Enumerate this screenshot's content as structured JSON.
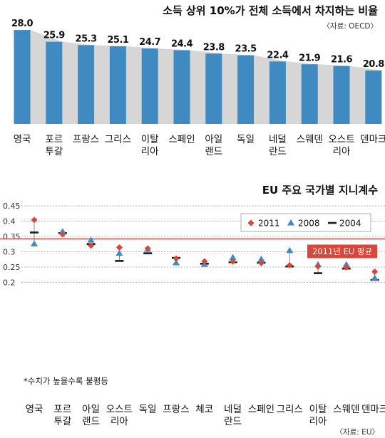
{
  "chart_data": [
    {
      "type": "bar",
      "title": "소득 상위 10%가 전체 소득에서 차지하는 비율",
      "source": "〈자료: OECD〉",
      "categories": [
        [
          "영국"
        ],
        [
          "포르",
          "투갈"
        ],
        [
          "프랑스"
        ],
        [
          "그리스"
        ],
        [
          "이탈",
          "리아"
        ],
        [
          "스페인"
        ],
        [
          "아일",
          "랜드"
        ],
        [
          "독일"
        ],
        [
          "네덜",
          "란드"
        ],
        [
          "스웨덴"
        ],
        [
          "오스트",
          "리아"
        ],
        [
          "덴마크"
        ]
      ],
      "values": [
        28.0,
        25.9,
        25.3,
        25.1,
        24.7,
        24.4,
        23.8,
        23.5,
        22.4,
        21.9,
        21.6,
        20.8
      ],
      "value_labels": [
        "28.0",
        "25.9",
        "25.3",
        "25.1",
        "24.7",
        "24.4",
        "23.8",
        "23.5",
        "22.4",
        "21.9",
        "21.6",
        "20.8"
      ],
      "colors": {
        "bar": "#3f8ac0",
        "bar_shadow": "#d6d6d6"
      }
    },
    {
      "type": "scatter",
      "title": "EU 주요 국가별 지니계수",
      "source": "〈자료: EU〉",
      "note": "*수치가 높을수록 불평등",
      "categories": [
        [
          "영국"
        ],
        [
          "포르",
          "투갈"
        ],
        [
          "아일",
          "랜드"
        ],
        [
          "오스트",
          "리아"
        ],
        [
          "독일"
        ],
        [
          "프랑스"
        ],
        [
          "체코"
        ],
        [
          "네덜",
          "란드"
        ],
        [
          "스페인"
        ],
        [
          "그리스"
        ],
        [
          "이탈",
          "리아"
        ],
        [
          "스웨덴"
        ],
        [
          "덴마크"
        ]
      ],
      "y_ticks": [
        "0.45",
        "0.4",
        "0.35",
        "0.3",
        "0.25",
        "0.2"
      ],
      "y_tick_values": [
        0.45,
        0.4,
        0.35,
        0.3,
        0.25,
        0.2
      ],
      "ylim": [
        0.2,
        0.45
      ],
      "grid": true,
      "legend_position": "top-right",
      "series": [
        {
          "name": "2011",
          "marker": "diamond",
          "color": "#d9463a",
          "values": [
            0.404,
            0.357,
            0.32,
            0.314,
            0.311,
            0.278,
            0.269,
            0.268,
            0.263,
            0.256,
            0.252,
            0.249,
            0.235
          ]
        },
        {
          "name": "2008",
          "marker": "triangle",
          "color": "#3f8ac0",
          "values": [
            0.326,
            0.366,
            0.338,
            0.295,
            0.308,
            0.264,
            0.259,
            0.281,
            0.276,
            0.304,
            0.258,
            0.258,
            0.214
          ]
        },
        {
          "name": "2004",
          "marker": "dash",
          "color": "#1a1a1a",
          "values": [
            0.363,
            0.361,
            0.325,
            0.27,
            0.295,
            0.28,
            0.261,
            0.266,
            0.264,
            0.252,
            0.23,
            0.245,
            0.208
          ]
        }
      ],
      "reference_line": {
        "label": "2011년 EU 평균",
        "value": 0.342,
        "color": "#d9463a"
      }
    }
  ]
}
